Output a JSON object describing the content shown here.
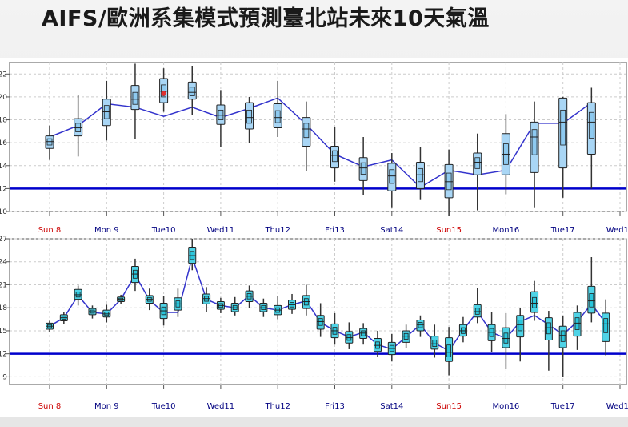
{
  "title": "AIFS/歐洲系集模式預測臺北站未來10天氣溫",
  "colors": {
    "line": "#3333cc",
    "threshold": "#0000cc",
    "box_top": "#a9d6f5",
    "box_bottom": "#a9d6f5",
    "whisker": "#333333",
    "grid": "#cccccc",
    "sunday_label": "#cc0000",
    "weekday_label": "#000080",
    "marker": "#e03030"
  },
  "chart_data": [
    {
      "type": "box",
      "panel": "top",
      "ylim": [
        10,
        23
      ],
      "yticks": [
        "10",
        "12",
        "14",
        "16",
        "18",
        "20",
        "22"
      ],
      "threshold": 12,
      "day_labels": [
        "Sun 8",
        "Mon 9",
        "Tue10",
        "Wed11",
        "Thu12",
        "Fri13",
        "Sat14",
        "Sun15",
        "Mon16",
        "Tue17",
        "Wed18"
      ],
      "sunday_labels": [
        "Sun 8",
        "Sun15"
      ],
      "boxes": [
        {
          "day": 0,
          "min": 14.5,
          "q1": 15.5,
          "median": 16.1,
          "q3": 16.6,
          "max": 17.5,
          "mean": 16.5
        },
        {
          "day": 0.5,
          "min": 14.8,
          "q1": 16.6,
          "median": 17.3,
          "q3": 18.1,
          "max": 20.2,
          "mean": 17.5
        },
        {
          "day": 1,
          "min": 16.2,
          "q1": 17.5,
          "median": 18.7,
          "q3": 19.8,
          "max": 21.4,
          "mean": 19.4
        },
        {
          "day": 1.5,
          "min": 16.3,
          "q1": 18.9,
          "median": 19.8,
          "q3": 21.0,
          "max": 22.9,
          "mean": 19.1
        },
        {
          "day": 2,
          "min": 18.7,
          "q1": 19.5,
          "median": 20.5,
          "q3": 21.6,
          "max": 22.5,
          "mean": 18.3,
          "marker": 20.3
        },
        {
          "day": 2.5,
          "min": 18.4,
          "q1": 19.8,
          "median": 20.4,
          "q3": 21.3,
          "max": 22.7,
          "mean": 19.1
        },
        {
          "day": 3,
          "min": 15.6,
          "q1": 17.6,
          "median": 18.4,
          "q3": 19.3,
          "max": 20.6,
          "mean": 18.2
        },
        {
          "day": 3.5,
          "min": 16.0,
          "q1": 17.2,
          "median": 18.2,
          "q3": 19.5,
          "max": 20.0,
          "mean": 19.0
        },
        {
          "day": 4,
          "min": 16.5,
          "q1": 17.3,
          "median": 18.2,
          "q3": 19.4,
          "max": 21.4,
          "mean": 19.9
        },
        {
          "day": 4.5,
          "min": 13.5,
          "q1": 15.7,
          "median": 17.2,
          "q3": 18.2,
          "max": 19.6,
          "mean": 17.6
        },
        {
          "day": 5,
          "min": 12.6,
          "q1": 13.8,
          "median": 14.9,
          "q3": 15.7,
          "max": 17.4,
          "mean": 15.0
        },
        {
          "day": 5.5,
          "min": 11.4,
          "q1": 12.7,
          "median": 13.8,
          "q3": 14.7,
          "max": 16.5,
          "mean": 13.9
        },
        {
          "day": 6,
          "min": 10.3,
          "q1": 11.8,
          "median": 13.1,
          "q3": 14.2,
          "max": 15.1,
          "mean": 14.5
        },
        {
          "day": 6.5,
          "min": 11.0,
          "q1": 12.0,
          "median": 13.2,
          "q3": 14.3,
          "max": 15.6,
          "mean": 12.1
        },
        {
          "day": 7,
          "min": 9.6,
          "q1": 11.2,
          "median": 12.6,
          "q3": 14.1,
          "max": 15.4,
          "mean": 13.6
        },
        {
          "day": 7.5,
          "min": 10.1,
          "q1": 13.2,
          "median": 14.3,
          "q3": 15.1,
          "max": 16.8,
          "mean": 13.2
        },
        {
          "day": 8,
          "min": 11.5,
          "q1": 13.2,
          "median": 15.0,
          "q3": 16.8,
          "max": 18.5,
          "mean": 13.6
        },
        {
          "day": 8.5,
          "min": 10.3,
          "q1": 13.4,
          "median": 16.5,
          "q3": 17.8,
          "max": 19.6,
          "mean": 17.7
        },
        {
          "day": 9,
          "min": 11.2,
          "q1": 13.8,
          "median": 17.8,
          "q3": 19.9,
          "max": 20.0,
          "mean": 17.7
        },
        {
          "day": 9.5,
          "min": 12.0,
          "q1": 15.0,
          "median": 17.8,
          "q3": 19.5,
          "max": 20.8,
          "mean": 19.5
        }
      ]
    },
    {
      "type": "box",
      "panel": "bottom",
      "ylim": [
        8,
        27
      ],
      "yticks": [
        "9",
        "12",
        "15",
        "18",
        "21",
        "24",
        "27"
      ],
      "threshold": 12,
      "day_labels": [
        "Sun 8",
        "Mon 9",
        "Tue10",
        "Wed11",
        "Thu12",
        "Fri13",
        "Sat14",
        "Sun15",
        "Mon16",
        "Tue17",
        "Wed18"
      ],
      "sunday_labels": [
        "Sun 8",
        "Sun15"
      ],
      "boxes": [
        {
          "day": 0,
          "min": 14.8,
          "q1": 15.2,
          "median": 15.6,
          "q3": 16.0,
          "max": 16.3,
          "mean": 15.6
        },
        {
          "day": 0.25,
          "min": 15.9,
          "q1": 16.3,
          "median": 16.7,
          "q3": 17.1,
          "max": 17.4,
          "mean": 16.7
        },
        {
          "day": 0.5,
          "min": 18.3,
          "q1": 19.1,
          "median": 19.7,
          "q3": 20.4,
          "max": 20.9,
          "mean": 19.6
        },
        {
          "day": 0.75,
          "min": 16.6,
          "q1": 17.1,
          "median": 17.5,
          "q3": 17.9,
          "max": 18.3,
          "mean": 17.4
        },
        {
          "day": 1,
          "min": 16.1,
          "q1": 16.8,
          "median": 17.2,
          "q3": 17.7,
          "max": 18.4,
          "mean": 17.2
        },
        {
          "day": 1.25,
          "min": 18.5,
          "q1": 18.8,
          "median": 19.1,
          "q3": 19.4,
          "max": 19.7,
          "mean": 19.1
        },
        {
          "day": 1.5,
          "min": 20.2,
          "q1": 21.3,
          "median": 22.4,
          "q3": 23.4,
          "max": 24.4,
          "mean": 22.3
        },
        {
          "day": 1.75,
          "min": 17.7,
          "q1": 18.6,
          "median": 19.1,
          "q3": 19.6,
          "max": 20.5,
          "mean": 19.0
        },
        {
          "day": 2,
          "min": 15.7,
          "q1": 16.6,
          "median": 17.6,
          "q3": 18.6,
          "max": 19.5,
          "mean": 17.4
        },
        {
          "day": 2.25,
          "min": 16.8,
          "q1": 17.7,
          "median": 18.5,
          "q3": 19.3,
          "max": 20.5,
          "mean": 17.4
        },
        {
          "day": 2.5,
          "min": 22.9,
          "q1": 23.8,
          "median": 24.8,
          "q3": 25.9,
          "max": 27.0,
          "mean": 24.6
        },
        {
          "day": 2.75,
          "min": 17.5,
          "q1": 18.5,
          "median": 19.2,
          "q3": 19.8,
          "max": 20.7,
          "mean": 19.1
        },
        {
          "day": 3,
          "min": 17.3,
          "q1": 17.8,
          "median": 18.3,
          "q3": 18.8,
          "max": 19.3,
          "mean": 18.3
        },
        {
          "day": 3.25,
          "min": 17.0,
          "q1": 17.5,
          "median": 18.0,
          "q3": 18.6,
          "max": 19.4,
          "mean": 18.0
        },
        {
          "day": 3.5,
          "min": 18.0,
          "q1": 18.8,
          "median": 19.5,
          "q3": 20.2,
          "max": 20.9,
          "mean": 19.6
        },
        {
          "day": 3.75,
          "min": 16.8,
          "q1": 17.5,
          "median": 18.0,
          "q3": 18.6,
          "max": 19.2,
          "mean": 18.0
        },
        {
          "day": 4,
          "min": 16.5,
          "q1": 17.1,
          "median": 17.7,
          "q3": 18.3,
          "max": 19.5,
          "mean": 17.7
        },
        {
          "day": 4.25,
          "min": 17.2,
          "q1": 17.8,
          "median": 18.4,
          "q3": 19.0,
          "max": 19.8,
          "mean": 18.4
        },
        {
          "day": 4.5,
          "min": 17.0,
          "q1": 17.9,
          "median": 18.8,
          "q3": 19.6,
          "max": 21.0,
          "mean": 18.9
        },
        {
          "day": 4.75,
          "min": 14.2,
          "q1": 15.2,
          "median": 16.2,
          "q3": 17.0,
          "max": 18.6,
          "mean": 16.1
        },
        {
          "day": 5,
          "min": 13.2,
          "q1": 14.1,
          "median": 15.0,
          "q3": 15.9,
          "max": 17.3,
          "mean": 15.0
        },
        {
          "day": 5.25,
          "min": 12.6,
          "q1": 13.4,
          "median": 14.1,
          "q3": 14.9,
          "max": 16.1,
          "mean": 14.2
        },
        {
          "day": 5.5,
          "min": 13.2,
          "q1": 14.0,
          "median": 14.7,
          "q3": 15.3,
          "max": 16.0,
          "mean": 14.8
        },
        {
          "day": 5.75,
          "min": 11.6,
          "q1": 12.3,
          "median": 13.1,
          "q3": 14.0,
          "max": 15.0,
          "mean": 13.2
        },
        {
          "day": 6,
          "min": 11.0,
          "q1": 11.9,
          "median": 12.7,
          "q3": 13.5,
          "max": 14.6,
          "mean": 12.6
        },
        {
          "day": 6.25,
          "min": 12.8,
          "q1": 13.5,
          "median": 14.3,
          "q3": 15.0,
          "max": 15.8,
          "mean": 14.2
        },
        {
          "day": 6.5,
          "min": 14.2,
          "q1": 15.0,
          "median": 15.8,
          "q3": 16.4,
          "max": 17.0,
          "mean": 15.8
        },
        {
          "day": 6.75,
          "min": 11.5,
          "q1": 12.6,
          "median": 13.3,
          "q3": 14.3,
          "max": 15.8,
          "mean": 13.4
        },
        {
          "day": 7,
          "min": 9.2,
          "q1": 11.0,
          "median": 12.2,
          "q3": 14.1,
          "max": 15.5,
          "mean": 12.4
        },
        {
          "day": 7.25,
          "min": 13.5,
          "q1": 14.3,
          "median": 15.0,
          "q3": 15.8,
          "max": 16.8,
          "mean": 15.1
        },
        {
          "day": 7.5,
          "min": 16.0,
          "q1": 16.8,
          "median": 17.5,
          "q3": 18.4,
          "max": 20.6,
          "mean": 17.5
        },
        {
          "day": 7.75,
          "min": 12.2,
          "q1": 13.7,
          "median": 14.8,
          "q3": 15.8,
          "max": 17.4,
          "mean": 14.8
        },
        {
          "day": 8,
          "min": 10.0,
          "q1": 12.8,
          "median": 14.0,
          "q3": 15.4,
          "max": 17.3,
          "mean": 14.0
        },
        {
          "day": 8.25,
          "min": 11.0,
          "q1": 14.2,
          "median": 15.8,
          "q3": 17.0,
          "max": 18.0,
          "mean": 16.2
        },
        {
          "day": 8.5,
          "min": 16.3,
          "q1": 17.4,
          "median": 18.6,
          "q3": 20.1,
          "max": 21.5,
          "mean": 17.0
        },
        {
          "day": 8.75,
          "min": 9.8,
          "q1": 13.8,
          "median": 15.4,
          "q3": 16.7,
          "max": 17.6,
          "mean": 15.8
        },
        {
          "day": 9,
          "min": 9.0,
          "q1": 12.8,
          "median": 14.4,
          "q3": 15.6,
          "max": 17.0,
          "mean": 14.5
        },
        {
          "day": 9.25,
          "min": 12.5,
          "q1": 14.3,
          "median": 16.0,
          "q3": 17.4,
          "max": 18.3,
          "mean": 16.2
        },
        {
          "day": 9.5,
          "min": 16.1,
          "q1": 17.3,
          "median": 18.9,
          "q3": 20.8,
          "max": 24.6,
          "mean": 18.5
        },
        {
          "day": 9.75,
          "min": 11.8,
          "q1": 13.6,
          "median": 15.9,
          "q3": 17.3,
          "max": 19.1,
          "mean": 16.0
        }
      ]
    }
  ]
}
